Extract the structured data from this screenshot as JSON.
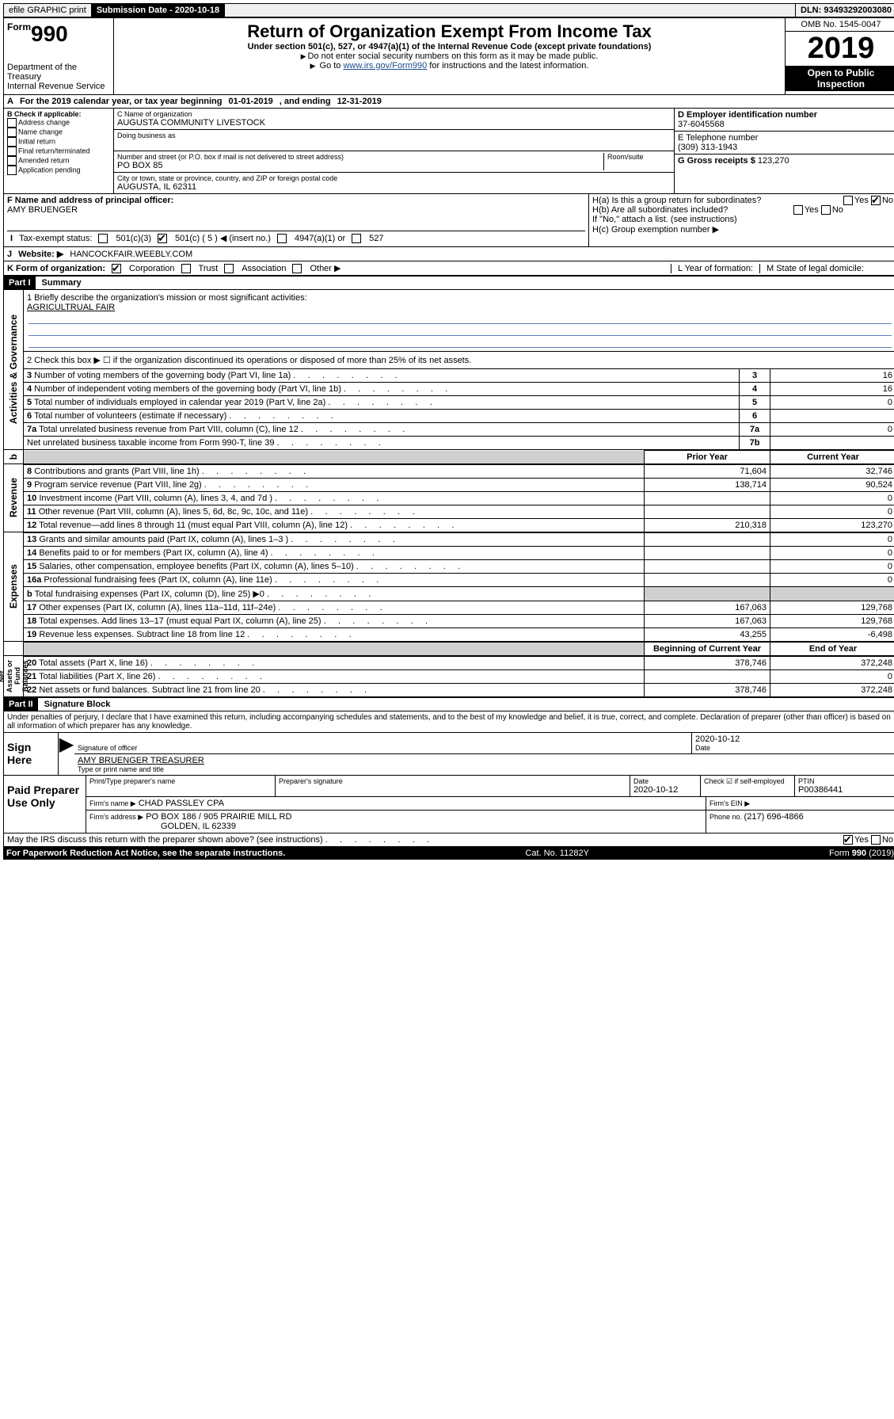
{
  "topbar": {
    "efile": "efile GRAPHIC print",
    "submission_label": "Submission Date - 2020-10-18",
    "dln": "DLN: 93493292003080"
  },
  "header": {
    "form": "990",
    "form_prefix": "Form",
    "title": "Return of Organization Exempt From Income Tax",
    "subtitle": "Under section 501(c), 527, or 4947(a)(1) of the Internal Revenue Code (except private foundations)",
    "note1": "Do not enter social security numbers on this form as it may be made public.",
    "note2_pre": "Go to ",
    "note2_link": "www.irs.gov/Form990",
    "note2_post": " for instructions and the latest information.",
    "omb": "OMB No. 1545-0047",
    "year": "2019",
    "open": "Open to Public Inspection",
    "dept": "Department of the Treasury",
    "irs": "Internal Revenue Service"
  },
  "periodA": {
    "text_pre": "For the 2019 calendar year, or tax year beginning ",
    "begin": "01-01-2019",
    "mid": " , and ending ",
    "end": "12-31-2019"
  },
  "boxB": {
    "label": "B Check if applicable:",
    "items": [
      "Address change",
      "Name change",
      "Initial return",
      "Final return/terminated",
      "Amended return",
      "Application pending"
    ]
  },
  "boxC": {
    "name_label": "C Name of organization",
    "name": "AUGUSTA COMMUNITY LIVESTOCK",
    "dba_label": "Doing business as",
    "street_label": "Number and street (or P.O. box if mail is not delivered to street address)",
    "room_label": "Room/suite",
    "street": "PO BOX 85",
    "city_label": "City or town, state or province, country, and ZIP or foreign postal code",
    "city": "AUGUSTA, IL  62311"
  },
  "boxD": {
    "label": "D Employer identification number",
    "value": "37-6045568"
  },
  "boxE": {
    "label": "E Telephone number",
    "value": "(309) 313-1943"
  },
  "boxG": {
    "label": "G Gross receipts $ ",
    "value": "123,270"
  },
  "boxF": {
    "label": "F  Name and address of principal officer:",
    "value": "AMY BRUENGER"
  },
  "boxH": {
    "a": "H(a)  Is this a group return for subordinates?",
    "b": "H(b)  Are all subordinates included?",
    "b_note": "If \"No,\" attach a list. (see instructions)",
    "c": "H(c)  Group exemption number ▶",
    "yes": "Yes",
    "no": "No"
  },
  "boxI": {
    "label": "Tax-exempt status:",
    "opts": [
      "501(c)(3)",
      "501(c) ( 5 ) ◀ (insert no.)",
      "4947(a)(1) or",
      "527"
    ]
  },
  "boxJ": {
    "label": "Website: ▶",
    "value": "HANCOCKFAIR.WEEBLY.COM"
  },
  "boxK": {
    "label": "K Form of organization:",
    "opts": [
      "Corporation",
      "Trust",
      "Association",
      "Other ▶"
    ]
  },
  "boxL": {
    "label": "L Year of formation:"
  },
  "boxM": {
    "label": "M State of legal domicile:"
  },
  "part1": {
    "header": "Part I",
    "title": "Summary",
    "line1_label": "1  Briefly describe the organization's mission or most significant activities:",
    "line1_value": "AGRICULTRUAL FAIR",
    "line2": "2   Check this box ▶ ☐  if the organization discontinued its operations or disposed of more than 25% of its net assets.",
    "sections": {
      "gov": "Activities & Governance",
      "rev": "Revenue",
      "exp": "Expenses",
      "net": "Net Assets or Fund Balances"
    },
    "col_prior": "Prior Year",
    "col_current": "Current Year",
    "col_begin": "Beginning of Current Year",
    "col_end": "End of Year",
    "gov_rows": [
      {
        "n": "3",
        "desc": "Number of voting members of the governing body (Part VI, line 1a)",
        "key": "3",
        "val": "16"
      },
      {
        "n": "4",
        "desc": "Number of independent voting members of the governing body (Part VI, line 1b)",
        "key": "4",
        "val": "16"
      },
      {
        "n": "5",
        "desc": "Total number of individuals employed in calendar year 2019 (Part V, line 2a)",
        "key": "5",
        "val": "0"
      },
      {
        "n": "6",
        "desc": "Total number of volunteers (estimate if necessary)",
        "key": "6",
        "val": ""
      },
      {
        "n": "7a",
        "desc": "Total unrelated business revenue from Part VIII, column (C), line 12",
        "key": "7a",
        "val": "0"
      },
      {
        "n": "",
        "desc": "Net unrelated business taxable income from Form 990-T, line 39",
        "key": "7b",
        "val": ""
      }
    ],
    "rev_rows": [
      {
        "n": "8",
        "desc": "Contributions and grants (Part VIII, line 1h)",
        "prior": "71,604",
        "cur": "32,746"
      },
      {
        "n": "9",
        "desc": "Program service revenue (Part VIII, line 2g)",
        "prior": "138,714",
        "cur": "90,524"
      },
      {
        "n": "10",
        "desc": "Investment income (Part VIII, column (A), lines 3, 4, and 7d )",
        "prior": "",
        "cur": "0"
      },
      {
        "n": "11",
        "desc": "Other revenue (Part VIII, column (A), lines 5, 6d, 8c, 9c, 10c, and 11e)",
        "prior": "",
        "cur": "0"
      },
      {
        "n": "12",
        "desc": "Total revenue—add lines 8 through 11 (must equal Part VIII, column (A), line 12)",
        "prior": "210,318",
        "cur": "123,270"
      }
    ],
    "exp_rows": [
      {
        "n": "13",
        "desc": "Grants and similar amounts paid (Part IX, column (A), lines 1–3 )",
        "prior": "",
        "cur": "0"
      },
      {
        "n": "14",
        "desc": "Benefits paid to or for members (Part IX, column (A), line 4)",
        "prior": "",
        "cur": "0"
      },
      {
        "n": "15",
        "desc": "Salaries, other compensation, employee benefits (Part IX, column (A), lines 5–10)",
        "prior": "",
        "cur": "0"
      },
      {
        "n": "16a",
        "desc": "Professional fundraising fees (Part IX, column (A), line 11e)",
        "prior": "",
        "cur": "0"
      },
      {
        "n": "b",
        "desc": "Total fundraising expenses (Part IX, column (D), line 25) ▶0",
        "prior": "GREY",
        "cur": "GREY"
      },
      {
        "n": "17",
        "desc": "Other expenses (Part IX, column (A), lines 11a–11d, 11f–24e)",
        "prior": "167,063",
        "cur": "129,768"
      },
      {
        "n": "18",
        "desc": "Total expenses. Add lines 13–17 (must equal Part IX, column (A), line 25)",
        "prior": "167,063",
        "cur": "129,768"
      },
      {
        "n": "19",
        "desc": "Revenue less expenses. Subtract line 18 from line 12",
        "prior": "43,255",
        "cur": "-6,498"
      }
    ],
    "net_rows": [
      {
        "n": "20",
        "desc": "Total assets (Part X, line 16)",
        "prior": "378,746",
        "cur": "372,248"
      },
      {
        "n": "21",
        "desc": "Total liabilities (Part X, line 26)",
        "prior": "",
        "cur": "0"
      },
      {
        "n": "22",
        "desc": "Net assets or fund balances. Subtract line 21 from line 20",
        "prior": "378,746",
        "cur": "372,248"
      }
    ]
  },
  "part2": {
    "header": "Part II",
    "title": "Signature Block",
    "decl": "Under penalties of perjury, I declare that I have examined this return, including accompanying schedules and statements, and to the best of my knowledge and belief, it is true, correct, and complete. Declaration of preparer (other than officer) is based on all information of which preparer has any knowledge.",
    "sign_here": "Sign Here",
    "sig_officer": "Signature of officer",
    "date": "Date",
    "date_val": "2020-10-12",
    "name_title": "AMY BRUENGER  TREASURER",
    "name_label": "Type or print name and title",
    "paid": "Paid Preparer Use Only",
    "prep_name_label": "Print/Type preparer's name",
    "prep_sig_label": "Preparer's signature",
    "prep_date_label": "Date",
    "prep_date": "2020-10-12",
    "check_self": "Check ☑ if self-employed",
    "ptin_label": "PTIN",
    "ptin": "P00386441",
    "firm_name_label": "Firm's name    ▶",
    "firm_name": "CHAD PASSLEY CPA",
    "firm_ein_label": "Firm's EIN ▶",
    "firm_addr_label": "Firm's address ▶",
    "firm_addr": "PO BOX 186 / 905 PRAIRIE MILL RD",
    "firm_city": "GOLDEN, IL  62339",
    "phone_label": "Phone no. ",
    "phone": "(217) 696-4866",
    "discuss": "May the IRS discuss this return with the preparer shown above? (see instructions)",
    "yes": "Yes",
    "no": "No"
  },
  "footer": {
    "left": "For Paperwork Reduction Act Notice, see the separate instructions.",
    "mid": "Cat. No. 11282Y",
    "right": "Form 990 (2019)"
  }
}
